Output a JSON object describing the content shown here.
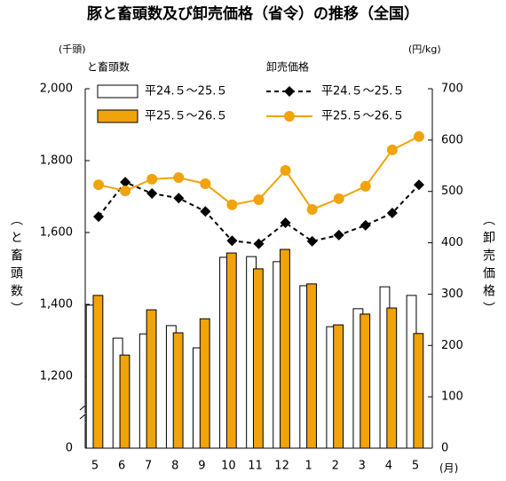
{
  "chart_data": {
    "type": "bar",
    "title": "豚と畜頭数及び卸売価格（省令）の推移（全国）",
    "y_unit": "(千頭)",
    "y_label": "（と畜頭数）",
    "y2_unit": "(円/kg)",
    "y2_label": "（卸売価格）",
    "x_unit": "(月)",
    "legend_groups": [
      "と畜頭数",
      "卸売価格"
    ],
    "categories": [
      "5",
      "6",
      "7",
      "8",
      "9",
      "10",
      "11",
      "12",
      "1",
      "2",
      "3",
      "4",
      "5"
    ],
    "series": [
      {
        "name": "平24.５～25.５",
        "type": "bar",
        "color": "#ffffff",
        "values": [
          1398,
          1306,
          1318,
          1341,
          1279,
          1531,
          1533,
          1519,
          1452,
          1338,
          1388,
          1449,
          1425
        ]
      },
      {
        "name": "平25.５～26.５",
        "type": "bar",
        "color": "#f0a30a",
        "values": [
          1425,
          1259,
          1385,
          1321,
          1360,
          1543,
          1499,
          1553,
          1457,
          1343,
          1373,
          1390,
          1319
        ]
      },
      {
        "name": "平24.５～25.５",
        "type": "line",
        "axis": "y2",
        "color": "#000000",
        "dashed": true,
        "marker": "diamond",
        "values": [
          451,
          518,
          496,
          487,
          461,
          404,
          398,
          439,
          403,
          415,
          434,
          458,
          513
        ]
      },
      {
        "name": "平25.５～26.５",
        "type": "line",
        "axis": "y2",
        "color": "#f0a30a",
        "dashed": false,
        "marker": "circle",
        "values": [
          513,
          501,
          524,
          527,
          515,
          474,
          484,
          541,
          465,
          486,
          510,
          581,
          607
        ]
      }
    ],
    "ylim": [
      0,
      2000
    ],
    "axis_break": [
      0,
      1200
    ],
    "yticks": [
      0,
      {
        "value": 1200,
        "label": "1,200"
      },
      {
        "value": 1400,
        "label": "1,400"
      },
      {
        "value": 1600,
        "label": "1,600"
      },
      {
        "value": 1800,
        "label": "1,800"
      },
      {
        "value": 2000,
        "label": "2,000"
      }
    ],
    "y2lim": [
      0,
      700
    ],
    "y2ticks": [
      0,
      100,
      200,
      300,
      400,
      500,
      600,
      700
    ],
    "grid": false
  }
}
